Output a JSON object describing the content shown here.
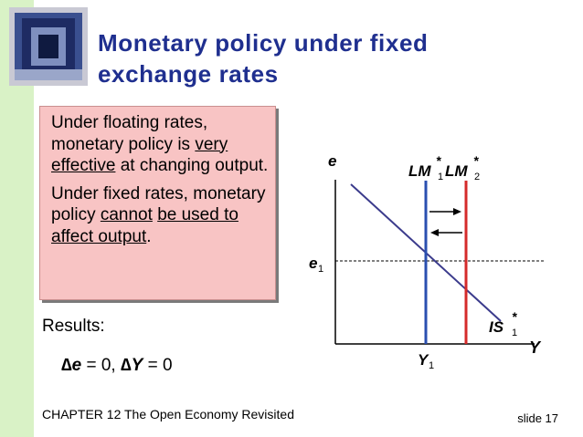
{
  "slide": {
    "title_line1": "Monetary policy under fixed",
    "title_line2": "exchange rates",
    "footer": "CHAPTER 12   The Open Economy Revisited",
    "slide_number": "slide 17"
  },
  "callout": {
    "p1_part1": "Under floating rates, monetary policy is ",
    "p1_underlined": "very effective",
    "p1_part2": " at changing output.",
    "p2_part1": "Under fixed rates, monetary policy ",
    "p2_underlined1": "cannot",
    "p2_space": " ",
    "p2_underlined2": "be used to affect output",
    "p2_part2": "."
  },
  "results": {
    "label": "Results:",
    "delta_symbol": "∆",
    "e_var": "e",
    "e_value": " = 0,  ",
    "y_var": "Y",
    "y_value": "  = 0"
  },
  "diagram": {
    "y_axis_label": "e",
    "x_axis_label": "Y",
    "e1_label": "e",
    "e1_sub": "1",
    "y1_label": "Y",
    "y1_sub": "1",
    "lm1_label": "LM",
    "lm1_sub": "1",
    "lm1_star": "*",
    "lm2_label": "LM",
    "lm2_sub": "2",
    "lm2_star": "*",
    "is_label": "IS",
    "is_sub": "1",
    "is_star": "*",
    "colors": {
      "lm1": "#2a4fb0",
      "lm2": "#d42a2a",
      "is": "#3b3b8c",
      "axis": "#000000"
    }
  }
}
